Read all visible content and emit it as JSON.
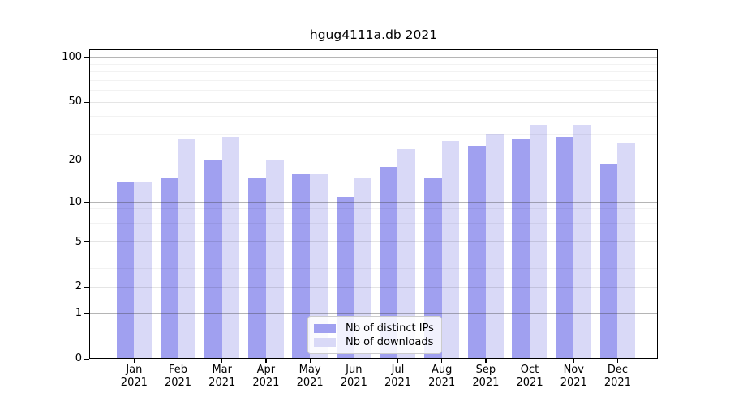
{
  "chart_data": {
    "type": "bar",
    "title": "hgug4111a.db 2021",
    "categories": [
      "Jan 2021",
      "Feb 2021",
      "Mar 2021",
      "Apr 2021",
      "May 2021",
      "Jun 2021",
      "Jul 2021",
      "Aug 2021",
      "Sep 2021",
      "Oct 2021",
      "Nov 2021",
      "Dec 2021"
    ],
    "series": [
      {
        "name": "Nb of distinct IPs",
        "color": "#a0a0f0",
        "values": [
          14,
          15,
          20,
          15,
          16,
          11,
          18,
          15,
          25,
          28,
          29,
          19
        ]
      },
      {
        "name": "Nb of downloads",
        "color": "#d9d9f7",
        "values": [
          14,
          28,
          29,
          20,
          16,
          15,
          24,
          27,
          30,
          35,
          35,
          26
        ]
      }
    ],
    "y_axis": {
      "scale": "log1p",
      "tick_labels": [
        0,
        1,
        2,
        5,
        10,
        20,
        50,
        100
      ],
      "decade_gridlines": [
        1,
        10,
        100
      ],
      "major_gridlines": [
        2,
        5,
        20,
        50
      ],
      "minor_gridlines": [
        3,
        4,
        6,
        7,
        8,
        9,
        30,
        40,
        60,
        70,
        80,
        90
      ],
      "range": [
        0,
        110
      ]
    },
    "xlabel": "",
    "ylabel": "",
    "grid": true,
    "legend": {
      "position": "bottom-center-inside",
      "entries": [
        "Nb of distinct IPs",
        "Nb of downloads"
      ]
    },
    "colors": {
      "background": "#ffffff",
      "axis": "#000000",
      "bar_dark": "#a0a0f0",
      "bar_light": "#d9d9f7"
    }
  }
}
